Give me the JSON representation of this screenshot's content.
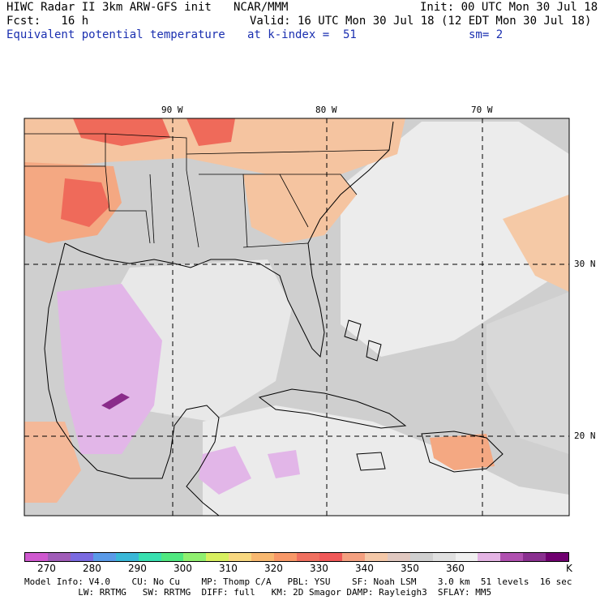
{
  "header": {
    "line1_left": "HIWC Radar II 3km ARW-GFS init",
    "line1_center": "NCAR/MMM",
    "line1_right": "Init: 00 UTC Mon 30 Jul 18",
    "line2_left": "Fcst:   16 h",
    "line2_right": "Valid: 16 UTC Mon 30 Jul 18 (12 EDT Mon 30 Jul 18)",
    "line3_left": "Equivalent potential temperature",
    "line3_center": "at k-index =  51",
    "line3_right": "sm= 2"
  },
  "map": {
    "lon_labels": [
      "90 W",
      "80 W",
      "70 W"
    ],
    "lat_labels": [
      "30 N",
      "20 N"
    ],
    "colors": {
      "ocean_light": "#efefef",
      "ocean_mid": "#d4d4d4",
      "land_base": "#c8c8c8",
      "warm_light": "#f5c9a6",
      "warm_mid": "#f4a882",
      "warm_hot": "#ef6a5a",
      "cool_purple": "#e2b6e8",
      "deep_purple": "#8a2b8a"
    }
  },
  "colorbar": {
    "colors": [
      "#cf58cf",
      "#a05cb8",
      "#7a6ae0",
      "#5a9ae8",
      "#3ab8d8",
      "#38e0b0",
      "#50e880",
      "#90f070",
      "#d8f060",
      "#f8d880",
      "#f8b870",
      "#f89868",
      "#f07060",
      "#f05858",
      "#f4a080",
      "#f4c8a8",
      "#e0c8c0",
      "#d0d0d0",
      "#e0e0e0",
      "#f0f0f0",
      "#e4b4e4",
      "#b050b0",
      "#8a3090",
      "#700070"
    ],
    "labels": [
      "270",
      "280",
      "290",
      "300",
      "310",
      "320",
      "330",
      "340",
      "350",
      "360"
    ],
    "unit": "K"
  },
  "footer": {
    "line1": "Model Info: V4.0    CU: No Cu    MP: Thomp C/A   PBL: YSU    SF: Noah LSM    3.0 km  51 levels  16 sec",
    "line2": "          LW: RRTMG   SW: RRTMG  DIFF: full   KM: 2D Smagor DAMP: Rayleigh3  SFLAY: MM5"
  }
}
